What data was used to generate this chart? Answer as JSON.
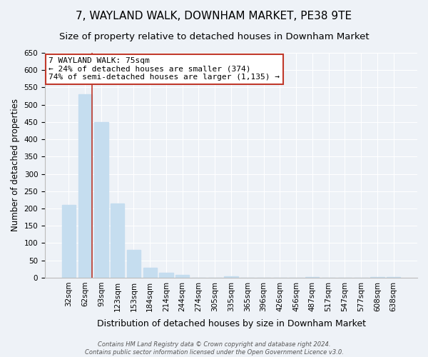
{
  "title": "7, WAYLAND WALK, DOWNHAM MARKET, PE38 9TE",
  "subtitle": "Size of property relative to detached houses in Downham Market",
  "xlabel": "Distribution of detached houses by size in Downham Market",
  "ylabel": "Number of detached properties",
  "bar_labels": [
    "32sqm",
    "62sqm",
    "93sqm",
    "123sqm",
    "153sqm",
    "184sqm",
    "214sqm",
    "244sqm",
    "274sqm",
    "305sqm",
    "335sqm",
    "365sqm",
    "396sqm",
    "426sqm",
    "456sqm",
    "487sqm",
    "517sqm",
    "547sqm",
    "577sqm",
    "608sqm",
    "638sqm"
  ],
  "bar_values": [
    210,
    530,
    450,
    215,
    80,
    28,
    15,
    8,
    0,
    0,
    3,
    0,
    0,
    0,
    0,
    1,
    0,
    0,
    0,
    1,
    1
  ],
  "bar_color": "#c5ddef",
  "vline_x": 1.45,
  "vline_color": "#c0392b",
  "annotation_title": "7 WAYLAND WALK: 75sqm",
  "annotation_line1": "← 24% of detached houses are smaller (374)",
  "annotation_line2": "74% of semi-detached houses are larger (1,135) →",
  "annotation_box_color": "#ffffff",
  "annotation_box_edgecolor": "#c0392b",
  "ylim": [
    0,
    650
  ],
  "yticks": [
    0,
    50,
    100,
    150,
    200,
    250,
    300,
    350,
    400,
    450,
    500,
    550,
    600,
    650
  ],
  "background_color": "#eef2f7",
  "grid_color": "#ffffff",
  "footer1": "Contains HM Land Registry data © Crown copyright and database right 2024.",
  "footer2": "Contains public sector information licensed under the Open Government Licence v3.0.",
  "title_fontsize": 11,
  "subtitle_fontsize": 9.5,
  "tick_fontsize": 7.5,
  "xlabel_fontsize": 9,
  "ylabel_fontsize": 8.5,
  "annotation_fontsize": 8,
  "footer_fontsize": 6
}
